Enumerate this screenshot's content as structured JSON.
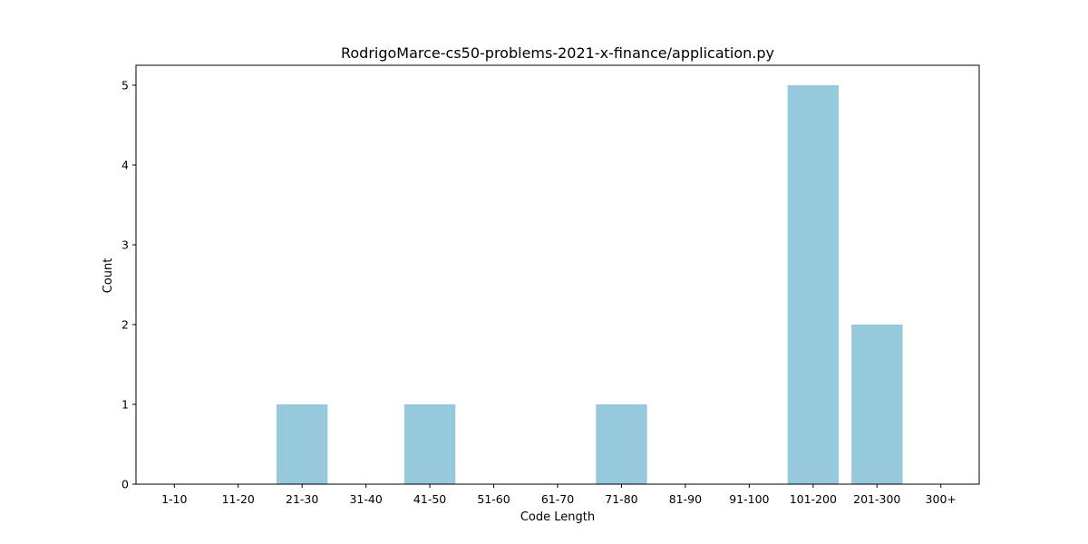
{
  "chart_data": {
    "type": "bar",
    "title": "RodrigoMarce-cs50-problems-2021-x-finance/application.py",
    "xlabel": "Code Length",
    "ylabel": "Count",
    "categories": [
      "1-10",
      "11-20",
      "21-30",
      "31-40",
      "41-50",
      "51-60",
      "61-70",
      "71-80",
      "81-90",
      "91-100",
      "101-200",
      "201-300",
      "300+"
    ],
    "values": [
      0,
      0,
      1,
      0,
      1,
      0,
      0,
      1,
      0,
      0,
      5,
      2,
      0
    ],
    "ylim": [
      0,
      5.25
    ],
    "yticks": [
      0,
      1,
      2,
      3,
      4,
      5
    ],
    "bar_color": "#96c9dc",
    "grid": false,
    "legend": "none"
  }
}
